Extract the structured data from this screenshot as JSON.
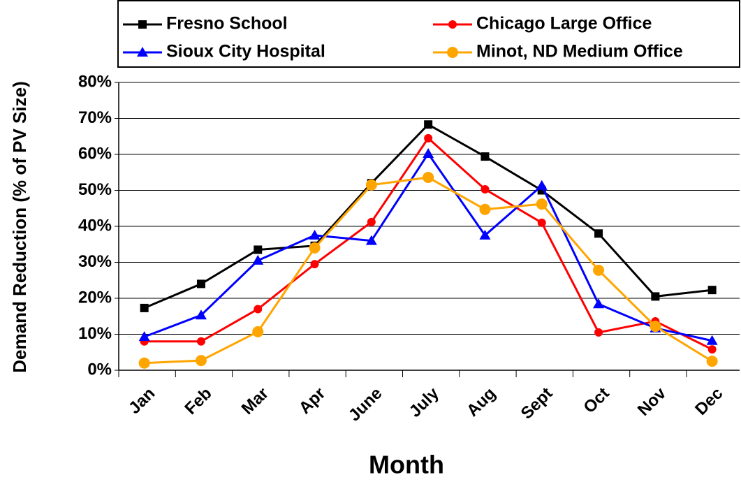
{
  "chart_data": {
    "type": "line",
    "y_label": "Demand Reduction (% of PV Size)",
    "x_label": "Month",
    "categories": [
      "Jan",
      "Feb",
      "Mar",
      "Apr",
      "June",
      "July",
      "Aug",
      "Sept",
      "Oct",
      "Nov",
      "Dec"
    ],
    "series": [
      {
        "name": "Fresno School",
        "color": "#000000",
        "marker": "square",
        "values": [
          17.3,
          24,
          33.5,
          34.6,
          52,
          68.3,
          59.4,
          50,
          38,
          20.5,
          22.3
        ]
      },
      {
        "name": "Chicago Large Office",
        "color": "#ff0000",
        "marker": "circle",
        "values": [
          8,
          8,
          17,
          29.5,
          41.2,
          64.5,
          50.3,
          41,
          10.5,
          13.6,
          5.8
        ]
      },
      {
        "name": "Sioux City Hospital",
        "color": "#0000ff",
        "marker": "triangle",
        "values": [
          9.3,
          15.3,
          30.5,
          37.5,
          36,
          60.2,
          37.5,
          51.3,
          18.4,
          11.7,
          8.2
        ]
      },
      {
        "name": "Minot, ND Medium Office",
        "color": "#ffa500",
        "marker": "bigcircle",
        "values": [
          2,
          2.7,
          10.7,
          34,
          51.5,
          53.6,
          44.7,
          46.2,
          27.8,
          12.2,
          2.5
        ]
      }
    ],
    "ylim": [
      0,
      80
    ],
    "yticks": [
      {
        "value": 0,
        "label": "0%"
      },
      {
        "value": 10,
        "label": "10%"
      },
      {
        "value": 20,
        "label": "20%"
      },
      {
        "value": 30,
        "label": "30%"
      },
      {
        "value": 40,
        "label": "40%"
      },
      {
        "value": 50,
        "label": "50%"
      },
      {
        "value": 60,
        "label": "60%"
      },
      {
        "value": 70,
        "label": "70%"
      },
      {
        "value": 80,
        "label": "80%"
      }
    ],
    "grid": true
  }
}
